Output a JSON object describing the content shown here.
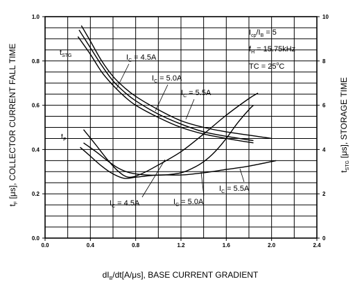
{
  "chart_data": {
    "type": "line",
    "xlabel": {
      "main": "dI",
      "sub": "B",
      "rest": "/dt[A/μs], BASE CURRENT GRADIENT"
    },
    "ylabel_left": {
      "a": "t",
      "sub": "F",
      "b": " [μs], COLLECTOR CURRENT FALL TIME"
    },
    "ylabel_right": {
      "a": "t",
      "sub": "STG",
      "b": " [μs], STORAGE TIME"
    },
    "xlim": [
      0.0,
      2.4
    ],
    "ylim_left": [
      0.0,
      1.0
    ],
    "ylim_right": [
      0,
      10
    ],
    "xticks": [
      "0.0",
      "0.4",
      "0.8",
      "1.2",
      "1.6",
      "2.0",
      "2.4"
    ],
    "yticks_left": [
      "0.0",
      "0.2",
      "0.4",
      "0.6",
      "0.8",
      "1.0"
    ],
    "yticks_right": [
      "0",
      "2",
      "4",
      "6",
      "8",
      "10"
    ],
    "grid": true,
    "conditions": {
      "line1": {
        "a": "I",
        "sub1": "cp",
        "b": "/I",
        "sub2": "B",
        "c": " = 5"
      },
      "line2": {
        "a": "f",
        "sub": "H",
        "b": " = 15.75kHz"
      },
      "line3": {
        "a": "TC = 25",
        "sup": "o",
        "b": "C"
      }
    },
    "group_labels": {
      "tstg": {
        "a": "t",
        "sub": "STG"
      },
      "tf": {
        "a": "t",
        "sub": "F"
      }
    },
    "series": [
      {
        "group": "tstg",
        "label": {
          "a": "I",
          "sub": "C",
          "b": " = 4.5A"
        },
        "x": [
          0.32,
          0.4,
          0.5,
          0.6,
          0.7,
          0.8,
          1.0,
          1.2,
          1.4,
          1.6,
          1.8,
          2.0
        ],
        "y": [
          9.6,
          8.9,
          8.0,
          7.3,
          6.8,
          6.4,
          5.8,
          5.3,
          5.0,
          4.8,
          4.65,
          4.5
        ]
      },
      {
        "group": "tstg",
        "label": {
          "a": "I",
          "sub": "C",
          "b": " = 5.0A"
        },
        "x": [
          0.3,
          0.4,
          0.5,
          0.6,
          0.7,
          0.8,
          1.0,
          1.2,
          1.4,
          1.6,
          1.84
        ],
        "y": [
          9.4,
          8.6,
          7.8,
          7.1,
          6.6,
          6.2,
          5.6,
          5.15,
          4.8,
          4.6,
          4.4
        ]
      },
      {
        "group": "tstg",
        "label": {
          "a": "I",
          "sub": "C",
          "b": " = 5.5A"
        },
        "x": [
          0.29,
          0.4,
          0.5,
          0.6,
          0.7,
          0.8,
          1.0,
          1.2,
          1.4,
          1.6,
          1.84
        ],
        "y": [
          9.1,
          8.3,
          7.5,
          6.9,
          6.4,
          6.0,
          5.45,
          5.0,
          4.7,
          4.5,
          4.3
        ]
      },
      {
        "group": "tf",
        "label": {
          "a": "I",
          "sub": "C",
          "b": " = 4.5A"
        },
        "x": [
          0.34,
          0.45,
          0.55,
          0.65,
          0.74,
          0.85,
          1.0,
          1.2,
          1.4,
          1.6,
          1.8,
          1.88
        ],
        "y": [
          4.9,
          4.2,
          3.55,
          3.0,
          2.75,
          2.9,
          3.3,
          3.9,
          4.7,
          5.55,
          6.3,
          6.55
        ]
      },
      {
        "group": "tf",
        "label": {
          "a": "I",
          "sub": "C",
          "b": " = 5.0A"
        },
        "x": [
          0.34,
          0.45,
          0.55,
          0.65,
          0.75,
          0.9,
          1.05,
          1.2,
          1.3,
          1.4,
          1.5,
          1.6,
          1.7,
          1.8,
          1.84
        ],
        "y": [
          4.3,
          3.9,
          3.5,
          3.15,
          2.95,
          2.85,
          2.85,
          2.95,
          3.15,
          3.45,
          3.9,
          4.5,
          5.2,
          5.8,
          6.0
        ]
      },
      {
        "group": "tf",
        "label": {
          "a": "I",
          "sub": "C",
          "b": " = 5.5A"
        },
        "x": [
          0.31,
          0.4,
          0.5,
          0.6,
          0.7,
          0.8,
          1.0,
          1.2,
          1.4,
          1.6,
          1.8,
          2.04
        ],
        "y": [
          4.1,
          3.7,
          3.25,
          2.9,
          2.7,
          2.75,
          2.85,
          2.85,
          2.95,
          3.1,
          3.25,
          3.5
        ]
      }
    ]
  }
}
